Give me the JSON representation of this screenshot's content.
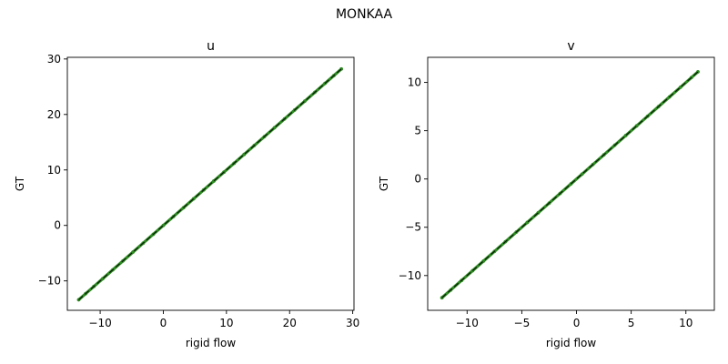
{
  "suptitle": "MONKAA",
  "colors": {
    "points": "#2e8b22",
    "line": "#000000"
  },
  "chart_data": [
    {
      "type": "scatter",
      "title": "u",
      "xlabel": "rigid flow",
      "ylabel": "GT",
      "xlim": [
        -15.2,
        30.2
      ],
      "ylim": [
        -15.3,
        30.3
      ],
      "xticks": [
        -10,
        0,
        10,
        20,
        30
      ],
      "yticks": [
        -10,
        0,
        10,
        20,
        30
      ],
      "x": [
        -13.4,
        -12.3,
        -11.0,
        -9.6,
        -8.0,
        -6.4,
        -4.8,
        -3.2,
        -1.6,
        0.0,
        1.6,
        3.2,
        4.8,
        6.4,
        8.0,
        9.6,
        11.2,
        12.8,
        14.4,
        16.0,
        17.6,
        19.2,
        20.8,
        22.4,
        24.0,
        25.6,
        27.0,
        28.2
      ],
      "y": [
        -13.4,
        -12.3,
        -11.0,
        -9.6,
        -8.0,
        -6.4,
        -4.8,
        -3.2,
        -1.6,
        0.0,
        1.6,
        3.2,
        4.8,
        6.4,
        8.0,
        9.6,
        11.2,
        12.8,
        14.4,
        16.0,
        17.6,
        19.2,
        20.8,
        22.4,
        24.0,
        25.6,
        27.0,
        28.2
      ],
      "grid": false
    },
    {
      "type": "scatter",
      "title": "v",
      "xlabel": "rigid flow",
      "ylabel": "GT",
      "xlim": [
        -13.6,
        12.6
      ],
      "ylim": [
        -13.6,
        12.6
      ],
      "xticks": [
        -10,
        -5,
        0,
        5,
        10
      ],
      "yticks": [
        -10,
        -5,
        0,
        5,
        10
      ],
      "x": [
        -12.3,
        -11.5,
        -10.5,
        -9.5,
        -8.5,
        -7.5,
        -6.5,
        -5.5,
        -4.5,
        -3.5,
        -2.5,
        -1.5,
        -0.5,
        0.5,
        1.5,
        2.5,
        3.5,
        4.5,
        5.5,
        6.5,
        7.5,
        8.5,
        9.5,
        10.5,
        11.1
      ],
      "y": [
        -12.3,
        -11.5,
        -10.5,
        -9.5,
        -8.5,
        -7.5,
        -6.5,
        -5.5,
        -4.5,
        -3.5,
        -2.5,
        -1.5,
        -0.5,
        0.5,
        1.5,
        2.5,
        3.5,
        4.5,
        5.5,
        6.5,
        7.5,
        8.5,
        9.5,
        10.5,
        11.1
      ],
      "grid": false
    }
  ]
}
